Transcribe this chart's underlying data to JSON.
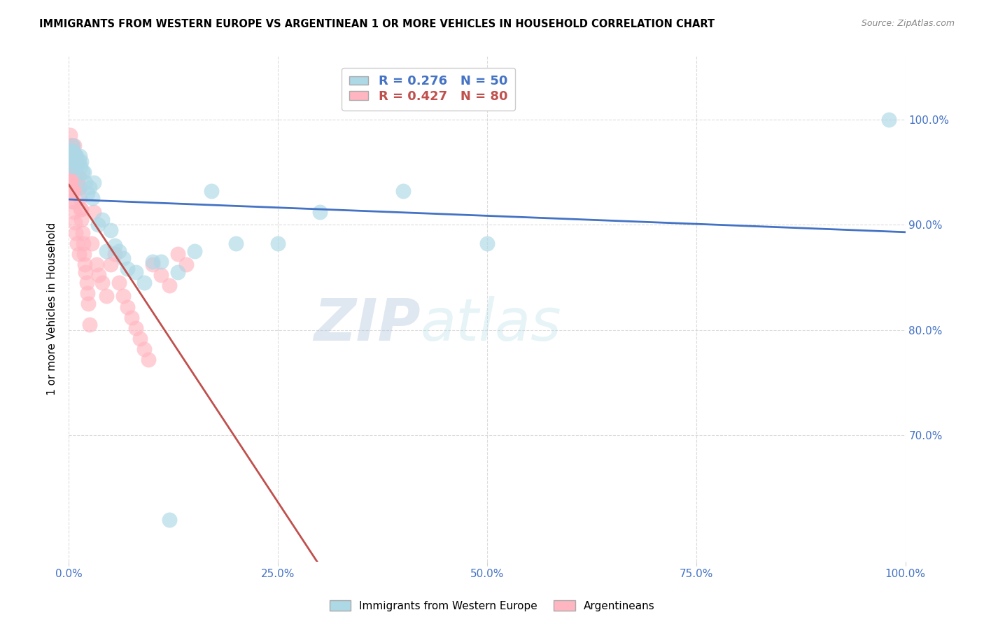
{
  "title": "IMMIGRANTS FROM WESTERN EUROPE VS ARGENTINEAN 1 OR MORE VEHICLES IN HOUSEHOLD CORRELATION CHART",
  "source": "Source: ZipAtlas.com",
  "ylabel": "1 or more Vehicles in Household",
  "xlim": [
    0.0,
    1.0
  ],
  "ylim": [
    0.58,
    1.06
  ],
  "xticks": [
    0.0,
    0.25,
    0.5,
    0.75,
    1.0
  ],
  "xtick_labels": [
    "0.0%",
    "25.0%",
    "50.0%",
    "75.0%",
    "100.0%"
  ],
  "yticks": [
    0.7,
    0.8,
    0.9,
    1.0
  ],
  "ytick_labels": [
    "70.0%",
    "80.0%",
    "90.0%",
    "100.0%"
  ],
  "blue_R": 0.276,
  "blue_N": 50,
  "pink_R": 0.427,
  "pink_N": 80,
  "blue_color": "#ADD8E6",
  "pink_color": "#FFB6C1",
  "blue_edge_color": "#6aaed6",
  "pink_edge_color": "#e88fa0",
  "blue_line_color": "#4472C4",
  "pink_line_color": "#C0504D",
  "watermark": "ZIPatlas",
  "blue_points_x": [
    0.001,
    0.002,
    0.003,
    0.004,
    0.005,
    0.005,
    0.006,
    0.007,
    0.008,
    0.009,
    0.01,
    0.011,
    0.012,
    0.013,
    0.014,
    0.015,
    0.016,
    0.018,
    0.02,
    0.022,
    0.025,
    0.028,
    0.03,
    0.035,
    0.04,
    0.045,
    0.05,
    0.055,
    0.06,
    0.065,
    0.07,
    0.08,
    0.09,
    0.1,
    0.11,
    0.12,
    0.13,
    0.15,
    0.17,
    0.2,
    0.25,
    0.3,
    0.4,
    0.5,
    0.003,
    0.004,
    0.005,
    0.006,
    0.007,
    0.98
  ],
  "blue_points_y": [
    0.965,
    0.97,
    0.965,
    0.97,
    0.965,
    0.975,
    0.965,
    0.965,
    0.965,
    0.965,
    0.96,
    0.958,
    0.96,
    0.965,
    0.955,
    0.96,
    0.95,
    0.95,
    0.94,
    0.93,
    0.935,
    0.925,
    0.94,
    0.9,
    0.905,
    0.875,
    0.895,
    0.88,
    0.875,
    0.868,
    0.858,
    0.855,
    0.845,
    0.865,
    0.865,
    0.62,
    0.855,
    0.875,
    0.932,
    0.882,
    0.882,
    0.912,
    0.932,
    0.882,
    0.962,
    0.968,
    0.955,
    0.968,
    0.955,
    1.0
  ],
  "pink_points_x": [
    0.001,
    0.001,
    0.002,
    0.002,
    0.003,
    0.003,
    0.003,
    0.004,
    0.004,
    0.004,
    0.005,
    0.005,
    0.005,
    0.006,
    0.006,
    0.006,
    0.007,
    0.007,
    0.007,
    0.008,
    0.008,
    0.009,
    0.009,
    0.01,
    0.01,
    0.011,
    0.011,
    0.012,
    0.012,
    0.013,
    0.013,
    0.014,
    0.015,
    0.015,
    0.016,
    0.017,
    0.018,
    0.019,
    0.02,
    0.021,
    0.022,
    0.023,
    0.025,
    0.027,
    0.03,
    0.033,
    0.036,
    0.04,
    0.045,
    0.05,
    0.055,
    0.06,
    0.065,
    0.07,
    0.075,
    0.08,
    0.085,
    0.09,
    0.095,
    0.1,
    0.11,
    0.12,
    0.13,
    0.14,
    0.003,
    0.004,
    0.005,
    0.006,
    0.007,
    0.008,
    0.01,
    0.012,
    0.002,
    0.003,
    0.004,
    0.005,
    0.001,
    0.002,
    0.003,
    0.004
  ],
  "pink_points_y": [
    0.975,
    0.985,
    0.975,
    0.965,
    0.97,
    0.96,
    0.975,
    0.975,
    0.965,
    0.972,
    0.962,
    0.952,
    0.962,
    0.962,
    0.975,
    0.952,
    0.965,
    0.952,
    0.962,
    0.955,
    0.965,
    0.945,
    0.955,
    0.945,
    0.958,
    0.935,
    0.945,
    0.935,
    0.945,
    0.925,
    0.935,
    0.915,
    0.905,
    0.915,
    0.892,
    0.882,
    0.872,
    0.862,
    0.855,
    0.845,
    0.835,
    0.825,
    0.805,
    0.882,
    0.912,
    0.862,
    0.852,
    0.845,
    0.832,
    0.862,
    0.872,
    0.845,
    0.832,
    0.822,
    0.812,
    0.802,
    0.792,
    0.782,
    0.772,
    0.862,
    0.852,
    0.842,
    0.872,
    0.862,
    0.942,
    0.932,
    0.922,
    0.912,
    0.902,
    0.892,
    0.882,
    0.872,
    0.955,
    0.948,
    0.94,
    0.932,
    0.952,
    0.942,
    0.932,
    0.922
  ]
}
